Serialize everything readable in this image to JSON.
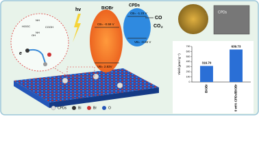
{
  "scheme": {
    "light": "hv",
    "electron": "e",
    "bioBr": "BiOBr",
    "cpds": "CPDs",
    "cb_biobr": "CB= -0.59 V",
    "vb_biobr": "VB= 2.83V",
    "cb_cpds": "CB= -1.23 V",
    "vb_cpds": "VB= -0.56 V",
    "product": "CO",
    "reactant": "CO",
    "reactant_sub": "2",
    "sem_label": "CPDs"
  },
  "molecule": {
    "labels": [
      "HOOC",
      "NH",
      "NH",
      "OH",
      "COOH"
    ]
  },
  "legend": {
    "items": [
      "CPDs",
      "Bi",
      "Br",
      "O"
    ]
  },
  "chart_data": {
    "type": "bar",
    "ylabel": "Yield (μmol g⁻¹)",
    "categories": [
      "BiOBr",
      "6 wt% CPDs/BiOBr"
    ],
    "values": [
      316.7,
      639.73
    ],
    "value_labels": [
      "316.70",
      "639.73"
    ],
    "color": "#2a6fd6",
    "ylim": [
      0,
      700
    ],
    "yticks": [
      0,
      100,
      200,
      300,
      400,
      500,
      600,
      700
    ]
  }
}
